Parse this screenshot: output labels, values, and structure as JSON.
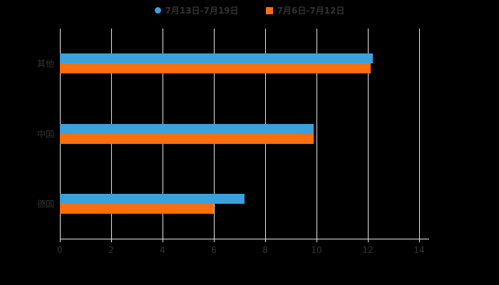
{
  "chart_data": {
    "type": "bar",
    "orientation": "horizontal",
    "title": "",
    "categories": [
      "其他",
      "中国",
      "德国"
    ],
    "series": [
      {
        "name": "7月13日-7月19日",
        "color": "#3BA1DB",
        "marker": "circle",
        "values": [
          12.2,
          9.9,
          7.2
        ]
      },
      {
        "name": "7月6日-7月12日",
        "color": "#FF6E0C",
        "marker": "square",
        "values": [
          12.1,
          9.9,
          6.0
        ]
      }
    ],
    "xlabel": "",
    "ylabel": "",
    "xlim": [
      0,
      14
    ],
    "xticks": [
      0,
      2,
      4,
      6,
      8,
      10,
      12,
      14
    ],
    "grid": true,
    "legend_position": "top",
    "background": "#000000",
    "gridline_color": "#e6e6e6",
    "text_color": "#333333"
  }
}
